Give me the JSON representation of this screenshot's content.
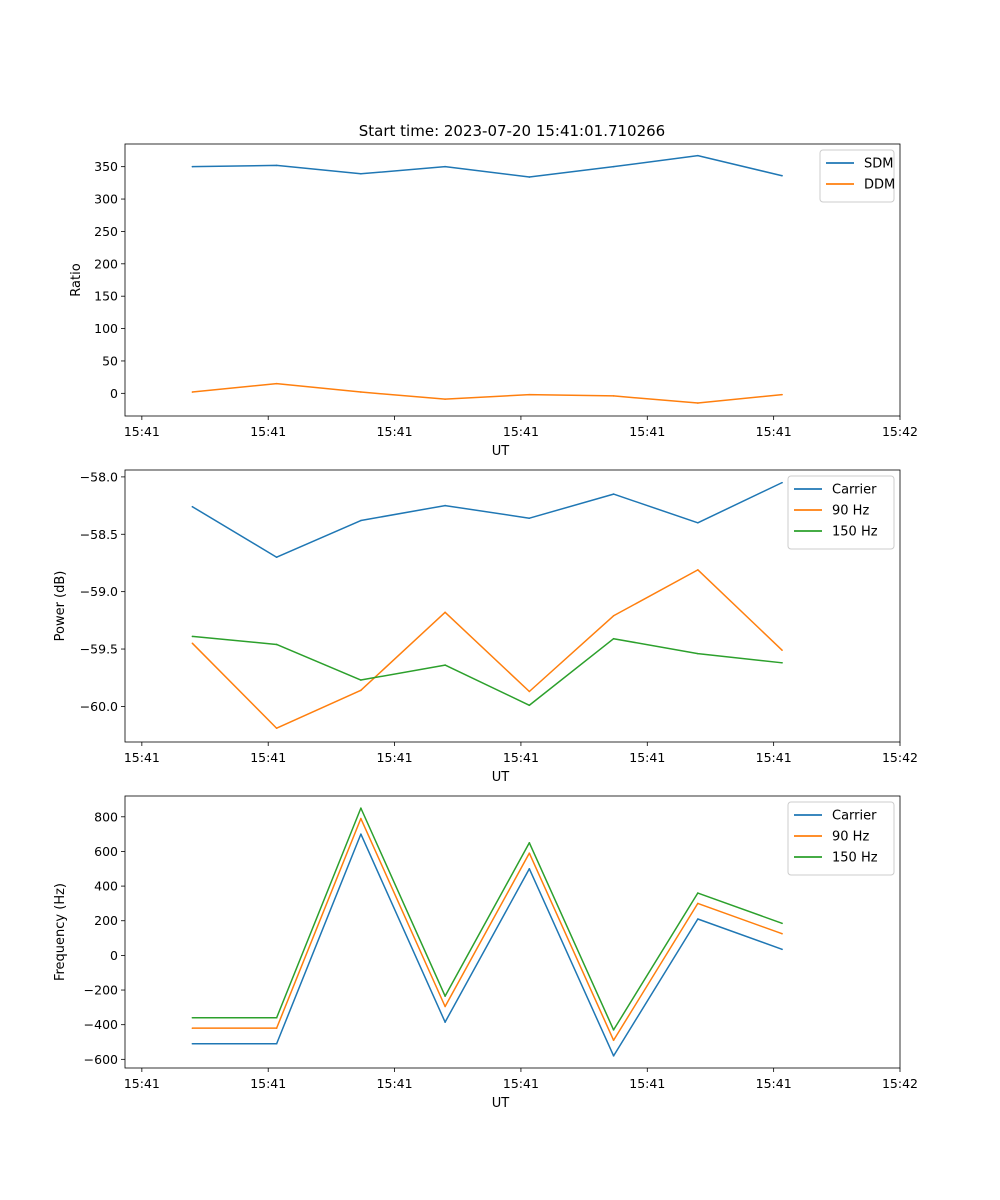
{
  "figure_title": "Start time: 2023-07-20 15:41:01.710266",
  "colors": {
    "blue": "#1f77b4",
    "orange": "#ff7f0e",
    "green": "#2ca02c"
  },
  "chart_data": [
    {
      "type": "line",
      "title": "Start time: 2023-07-20 15:41:01.710266",
      "xlabel": "UT",
      "ylabel": "Ratio",
      "x": [
        1,
        2,
        3,
        4,
        5,
        6,
        7,
        8
      ],
      "xlim": [
        0.2,
        9.4
      ],
      "xticks": [
        0.4,
        1.9,
        3.4,
        4.9,
        6.4,
        7.9,
        9.4
      ],
      "xtick_labels": [
        "15:41",
        "15:41",
        "15:41",
        "15:41",
        "15:41",
        "15:41",
        "15:42"
      ],
      "ylim": [
        -35,
        385
      ],
      "yticks": [
        0,
        50,
        100,
        150,
        200,
        250,
        300,
        350
      ],
      "ytick_labels": [
        "0",
        "50",
        "100",
        "150",
        "200",
        "250",
        "300",
        "350"
      ],
      "legend_location": "top-right",
      "series": [
        {
          "name": "SDM",
          "color": "#1f77b4",
          "values": [
            350,
            352,
            339,
            350,
            334,
            350,
            367,
            336
          ]
        },
        {
          "name": "DDM",
          "color": "#ff7f0e",
          "values": [
            2,
            15,
            2,
            -9,
            -2,
            -4,
            -15,
            -2
          ]
        }
      ]
    },
    {
      "type": "line",
      "title": "",
      "xlabel": "UT",
      "ylabel": "Power (dB)",
      "x": [
        1,
        2,
        3,
        4,
        5,
        6,
        7,
        8
      ],
      "xlim": [
        0.2,
        9.4
      ],
      "xticks": [
        0.4,
        1.9,
        3.4,
        4.9,
        6.4,
        7.9,
        9.4
      ],
      "xtick_labels": [
        "15:41",
        "15:41",
        "15:41",
        "15:41",
        "15:41",
        "15:41",
        "15:42"
      ],
      "ylim": [
        -60.31,
        -57.94
      ],
      "yticks": [
        -60.0,
        -59.5,
        -59.0,
        -58.5,
        -58.0
      ],
      "ytick_labels": [
        "−60.0",
        "−59.5",
        "−59.0",
        "−58.5",
        "−58.0"
      ],
      "legend_location": "top-right",
      "series": [
        {
          "name": "Carrier",
          "color": "#1f77b4",
          "values": [
            -58.26,
            -58.7,
            -58.38,
            -58.25,
            -58.36,
            -58.15,
            -58.4,
            -58.05
          ]
        },
        {
          "name": "90 Hz",
          "color": "#ff7f0e",
          "values": [
            -59.45,
            -60.19,
            -59.86,
            -59.18,
            -59.87,
            -59.21,
            -58.81,
            -59.51
          ]
        },
        {
          "name": "150 Hz",
          "color": "#2ca02c",
          "values": [
            -59.39,
            -59.46,
            -59.77,
            -59.64,
            -59.99,
            -59.41,
            -59.54,
            -59.62
          ]
        }
      ]
    },
    {
      "type": "line",
      "title": "",
      "xlabel": "UT",
      "ylabel": "Frequency (Hz)",
      "x": [
        1,
        2,
        3,
        4,
        5,
        6,
        7,
        8
      ],
      "xlim": [
        0.2,
        9.4
      ],
      "xticks": [
        0.4,
        1.9,
        3.4,
        4.9,
        6.4,
        7.9,
        9.4
      ],
      "xtick_labels": [
        "15:41",
        "15:41",
        "15:41",
        "15:41",
        "15:41",
        "15:41",
        "15:42"
      ],
      "ylim": [
        -650,
        920
      ],
      "yticks": [
        -600,
        -400,
        -200,
        0,
        200,
        400,
        600,
        800
      ],
      "ytick_labels": [
        "−600",
        "−400",
        "−200",
        "0",
        "200",
        "400",
        "600",
        "800"
      ],
      "legend_location": "top-right",
      "series": [
        {
          "name": "Carrier",
          "color": "#1f77b4",
          "values": [
            -510,
            -510,
            700,
            -385,
            500,
            -580,
            210,
            35
          ]
        },
        {
          "name": "90 Hz",
          "color": "#ff7f0e",
          "values": [
            -420,
            -420,
            790,
            -295,
            590,
            -490,
            300,
            125
          ]
        },
        {
          "name": "150 Hz",
          "color": "#2ca02c",
          "values": [
            -360,
            -360,
            850,
            -235,
            650,
            -430,
            360,
            185
          ]
        }
      ]
    }
  ]
}
